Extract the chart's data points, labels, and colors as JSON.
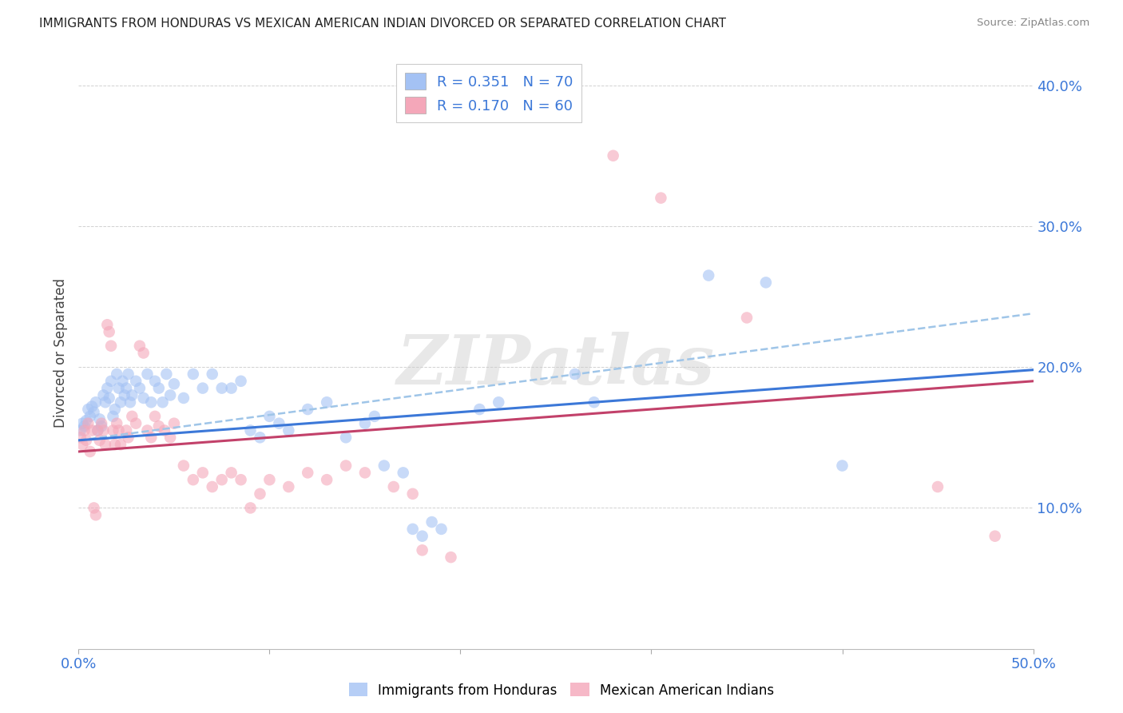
{
  "title": "IMMIGRANTS FROM HONDURAS VS MEXICAN AMERICAN INDIAN DIVORCED OR SEPARATED CORRELATION CHART",
  "source": "Source: ZipAtlas.com",
  "ylabel": "Divorced or Separated",
  "xmin": 0.0,
  "xmax": 0.5,
  "ymin": 0.0,
  "ymax": 0.42,
  "yticks": [
    0.1,
    0.2,
    0.3,
    0.4
  ],
  "ytick_labels": [
    "10.0%",
    "20.0%",
    "30.0%",
    "40.0%"
  ],
  "blue_R": 0.351,
  "blue_N": 70,
  "pink_R": 0.17,
  "pink_N": 60,
  "blue_color": "#a4c2f4",
  "pink_color": "#f4a7b9",
  "blue_line_color": "#3c78d8",
  "pink_line_color": "#c2416a",
  "dashed_line_color": "#9fc5e8",
  "watermark_text": "ZIPatlas",
  "blue_line_x": [
    0.0,
    0.5
  ],
  "blue_line_y": [
    0.148,
    0.198
  ],
  "pink_line_x": [
    0.0,
    0.5
  ],
  "pink_line_y": [
    0.14,
    0.19
  ],
  "dashed_line_x": [
    0.0,
    0.5
  ],
  "dashed_line_y": [
    0.148,
    0.238
  ],
  "blue_scatter": [
    [
      0.001,
      0.155
    ],
    [
      0.002,
      0.16
    ],
    [
      0.003,
      0.158
    ],
    [
      0.004,
      0.162
    ],
    [
      0.005,
      0.17
    ],
    [
      0.006,
      0.165
    ],
    [
      0.007,
      0.172
    ],
    [
      0.008,
      0.168
    ],
    [
      0.009,
      0.175
    ],
    [
      0.01,
      0.155
    ],
    [
      0.011,
      0.163
    ],
    [
      0.012,
      0.158
    ],
    [
      0.013,
      0.18
    ],
    [
      0.014,
      0.175
    ],
    [
      0.015,
      0.185
    ],
    [
      0.016,
      0.178
    ],
    [
      0.017,
      0.19
    ],
    [
      0.018,
      0.165
    ],
    [
      0.019,
      0.17
    ],
    [
      0.02,
      0.195
    ],
    [
      0.021,
      0.185
    ],
    [
      0.022,
      0.175
    ],
    [
      0.023,
      0.19
    ],
    [
      0.024,
      0.18
    ],
    [
      0.025,
      0.185
    ],
    [
      0.026,
      0.195
    ],
    [
      0.027,
      0.175
    ],
    [
      0.028,
      0.18
    ],
    [
      0.03,
      0.19
    ],
    [
      0.032,
      0.185
    ],
    [
      0.034,
      0.178
    ],
    [
      0.036,
      0.195
    ],
    [
      0.038,
      0.175
    ],
    [
      0.04,
      0.19
    ],
    [
      0.042,
      0.185
    ],
    [
      0.044,
      0.175
    ],
    [
      0.046,
      0.195
    ],
    [
      0.048,
      0.18
    ],
    [
      0.05,
      0.188
    ],
    [
      0.055,
      0.178
    ],
    [
      0.06,
      0.195
    ],
    [
      0.065,
      0.185
    ],
    [
      0.07,
      0.195
    ],
    [
      0.075,
      0.185
    ],
    [
      0.08,
      0.185
    ],
    [
      0.085,
      0.19
    ],
    [
      0.09,
      0.155
    ],
    [
      0.095,
      0.15
    ],
    [
      0.1,
      0.165
    ],
    [
      0.105,
      0.16
    ],
    [
      0.11,
      0.155
    ],
    [
      0.12,
      0.17
    ],
    [
      0.13,
      0.175
    ],
    [
      0.14,
      0.15
    ],
    [
      0.15,
      0.16
    ],
    [
      0.155,
      0.165
    ],
    [
      0.16,
      0.13
    ],
    [
      0.17,
      0.125
    ],
    [
      0.175,
      0.085
    ],
    [
      0.18,
      0.08
    ],
    [
      0.185,
      0.09
    ],
    [
      0.19,
      0.085
    ],
    [
      0.21,
      0.17
    ],
    [
      0.22,
      0.175
    ],
    [
      0.26,
      0.195
    ],
    [
      0.27,
      0.175
    ],
    [
      0.33,
      0.265
    ],
    [
      0.36,
      0.26
    ],
    [
      0.4,
      0.13
    ]
  ],
  "pink_scatter": [
    [
      0.001,
      0.15
    ],
    [
      0.002,
      0.145
    ],
    [
      0.003,
      0.155
    ],
    [
      0.004,
      0.148
    ],
    [
      0.005,
      0.16
    ],
    [
      0.006,
      0.14
    ],
    [
      0.007,
      0.155
    ],
    [
      0.008,
      0.1
    ],
    [
      0.009,
      0.095
    ],
    [
      0.01,
      0.155
    ],
    [
      0.011,
      0.148
    ],
    [
      0.012,
      0.16
    ],
    [
      0.013,
      0.155
    ],
    [
      0.014,
      0.145
    ],
    [
      0.015,
      0.23
    ],
    [
      0.016,
      0.225
    ],
    [
      0.017,
      0.215
    ],
    [
      0.018,
      0.155
    ],
    [
      0.019,
      0.145
    ],
    [
      0.02,
      0.16
    ],
    [
      0.021,
      0.155
    ],
    [
      0.022,
      0.145
    ],
    [
      0.025,
      0.155
    ],
    [
      0.026,
      0.15
    ],
    [
      0.028,
      0.165
    ],
    [
      0.03,
      0.16
    ],
    [
      0.032,
      0.215
    ],
    [
      0.034,
      0.21
    ],
    [
      0.036,
      0.155
    ],
    [
      0.038,
      0.15
    ],
    [
      0.04,
      0.165
    ],
    [
      0.042,
      0.158
    ],
    [
      0.045,
      0.155
    ],
    [
      0.048,
      0.15
    ],
    [
      0.05,
      0.16
    ],
    [
      0.055,
      0.13
    ],
    [
      0.06,
      0.12
    ],
    [
      0.065,
      0.125
    ],
    [
      0.07,
      0.115
    ],
    [
      0.075,
      0.12
    ],
    [
      0.08,
      0.125
    ],
    [
      0.085,
      0.12
    ],
    [
      0.09,
      0.1
    ],
    [
      0.095,
      0.11
    ],
    [
      0.1,
      0.12
    ],
    [
      0.11,
      0.115
    ],
    [
      0.12,
      0.125
    ],
    [
      0.13,
      0.12
    ],
    [
      0.14,
      0.13
    ],
    [
      0.15,
      0.125
    ],
    [
      0.165,
      0.115
    ],
    [
      0.175,
      0.11
    ],
    [
      0.18,
      0.07
    ],
    [
      0.195,
      0.065
    ],
    [
      0.28,
      0.35
    ],
    [
      0.305,
      0.32
    ],
    [
      0.35,
      0.235
    ],
    [
      0.45,
      0.115
    ],
    [
      0.48,
      0.08
    ]
  ]
}
